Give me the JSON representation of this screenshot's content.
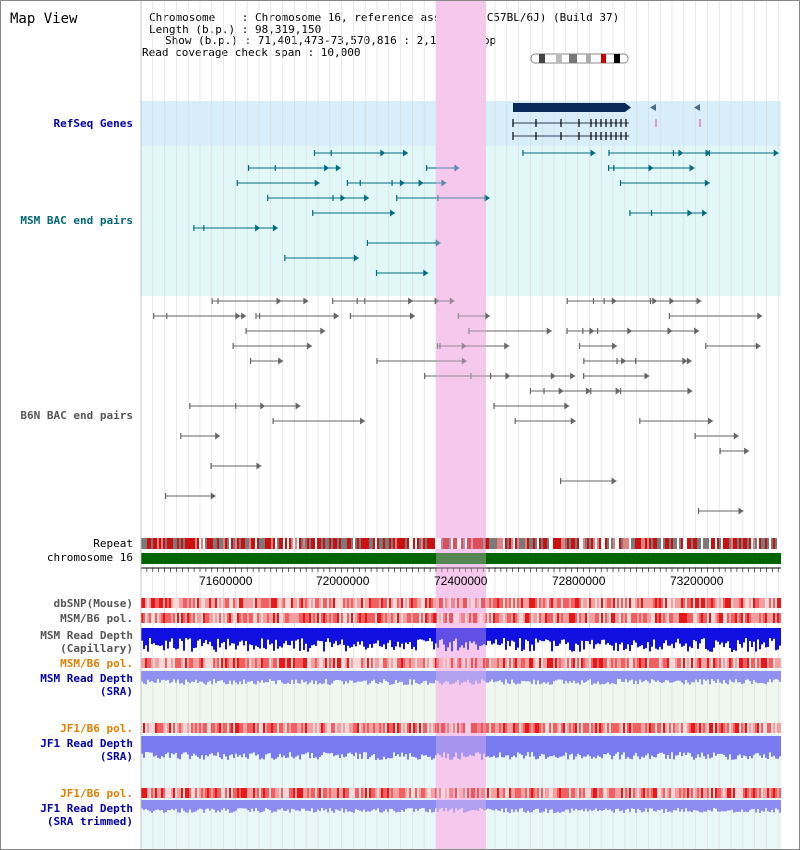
{
  "title": "Map View",
  "info": {
    "chromosome_line": "Chromosome    : Chromosome 16, reference assembly (C57BL/6J) (Build 37)",
    "length_line": "Length (b.p.) : 98,319,150",
    "show_line": "Show (b.p.) : 71,401,473-73,570,816 : 2,169,344 bp",
    "coverage_line": "Read coverage check span : 10,000"
  },
  "tracks": {
    "refseq": "RefSeq Genes",
    "msm_bac": "MSM BAC end pairs",
    "b6n_bac": "B6N BAC end pairs",
    "repeat": "Repeat",
    "chromosome": "chromosome 16",
    "dbsnp": "dbSNP(Mouse)",
    "msm_b6_pol_1": "MSM/B6 pol.",
    "msm_read_depth_cap_1": "MSM Read Depth",
    "msm_read_depth_cap_2": "(Capillary)",
    "msm_b6_pol_2": "MSM/B6 pol.",
    "msm_read_depth_sra_1": "MSM Read Depth",
    "msm_read_depth_sra_2": "(SRA)",
    "jf1_b6_pol_1": "JF1/B6 pol.",
    "jf1_read_depth_sra_1": "JF1 Read Depth",
    "jf1_read_depth_sra_2": "(SRA)",
    "jf1_b6_pol_2": "JF1/B6 pol.",
    "jf1_read_depth_trim_1": "JF1 Read Depth",
    "jf1_read_depth_trim_2": "(SRA trimmed)"
  },
  "axis": {
    "ticks": [
      "71600000",
      "72000000",
      "72400000",
      "72800000",
      "73200000"
    ]
  },
  "colors": {
    "highlight": "#f6c8ee",
    "refseq_bg": "#d8eefa",
    "msm_bg": "#e2f8f8",
    "teal": "#006c80",
    "gray": "#666666",
    "navy": "#0a2a5a",
    "chrom_green": "#006400",
    "depth_blue": "#1010e0",
    "depth_light": "#7a7af0"
  }
}
